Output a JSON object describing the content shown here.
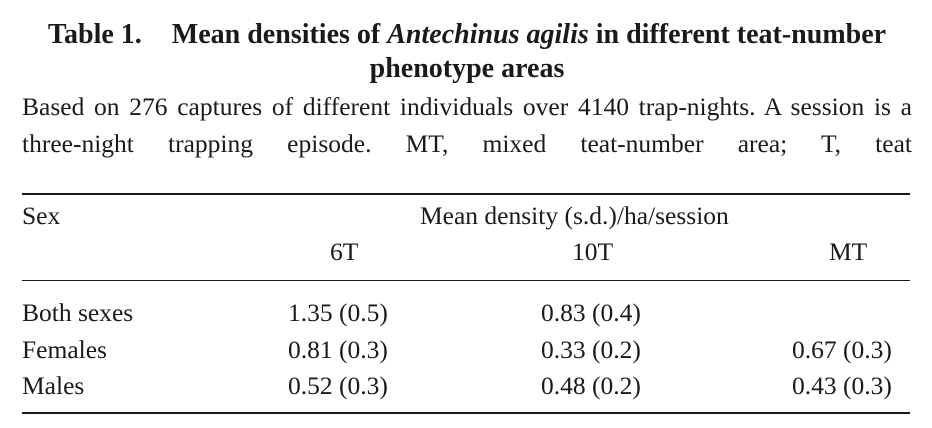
{
  "title": {
    "label": "Table 1.",
    "text_before": "Mean densities of ",
    "species": "Antechinus agilis",
    "text_after": " in different teat-number phenotype areas"
  },
  "caption": "Based on 276 captures of different individuals over 4140 trap-nights. A session is a three-night trapping episode. MT, mixed teat-number area; T, teat",
  "table": {
    "header": {
      "sex": "Sex",
      "span": "Mean density (s.d.)/ha/session",
      "columns": [
        "6T",
        "10T",
        "MT"
      ]
    },
    "rows": [
      {
        "label": "Both sexes",
        "values": [
          "1.35 (0.5)",
          "0.83 (0.4)",
          ""
        ]
      },
      {
        "label": "Females",
        "values": [
          "0.81 (0.3)",
          "0.33 (0.2)",
          "0.67 (0.3)"
        ]
      },
      {
        "label": "Males",
        "values": [
          "0.52 (0.3)",
          "0.48 (0.2)",
          "0.43 (0.3)"
        ]
      }
    ]
  }
}
